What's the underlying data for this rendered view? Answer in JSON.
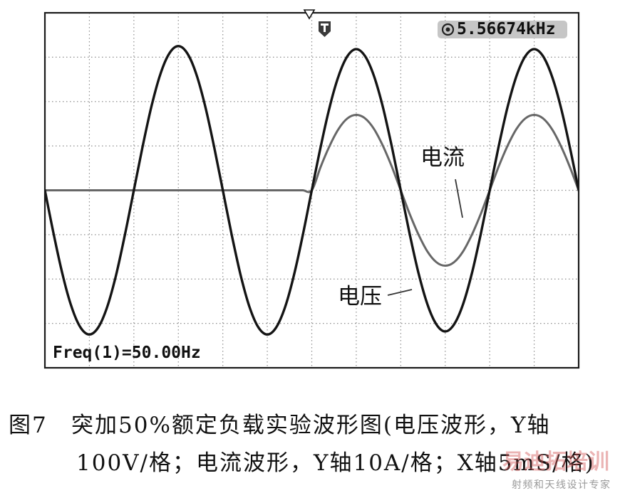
{
  "chart_data": {
    "type": "line",
    "title": "",
    "xlabel": "",
    "ylabel": "",
    "grid": true,
    "xlim_ms": [
      -30,
      30
    ],
    "ylim_voltage_V": [
      -400,
      400
    ],
    "ylim_current_A": [
      -40,
      40
    ],
    "scale": {
      "x_ms_per_div": 5,
      "voltage_V_per_div": 100,
      "current_A_per_div": 10
    },
    "x_ms": [
      -30,
      -29,
      -28,
      -27,
      -26,
      -25,
      -24,
      -23,
      -22,
      -21,
      -20,
      -19,
      -18,
      -17,
      -16,
      -15,
      -14,
      -13,
      -12,
      -11,
      -10,
      -9,
      -8,
      -7,
      -6,
      -5,
      -4,
      -3,
      -2,
      -1,
      0,
      1,
      2,
      3,
      4,
      5,
      6,
      7,
      8,
      9,
      10,
      11,
      12,
      13,
      14,
      15,
      16,
      17,
      18,
      19,
      20,
      21,
      22,
      23,
      24,
      25,
      26,
      27,
      28,
      29,
      30
    ],
    "series": [
      {
        "name": "电压",
        "values_V": [
          0,
          -100,
          -191,
          -263,
          -309,
          -325,
          -309,
          -263,
          -191,
          -100,
          0,
          100,
          191,
          263,
          309,
          325,
          309,
          263,
          191,
          100,
          0,
          -100,
          -191,
          -263,
          -309,
          -325,
          -309,
          -263,
          -191,
          -100,
          0,
          98,
          187,
          257,
          302,
          318,
          302,
          257,
          187,
          98,
          0,
          -98,
          -187,
          -257,
          -302,
          -318,
          -302,
          -257,
          -187,
          -98,
          0,
          98,
          187,
          257,
          302,
          318,
          302,
          257,
          187,
          98,
          0
        ]
      },
      {
        "name": "电流",
        "values_A": [
          0,
          0,
          0,
          0,
          0,
          0,
          0,
          0,
          0,
          0,
          0,
          0,
          0,
          0,
          0,
          0,
          0,
          0,
          0,
          0,
          0,
          0,
          0,
          0,
          0,
          0,
          0,
          0,
          0,
          0,
          0,
          5.3,
          10,
          13.8,
          16.2,
          17,
          16.2,
          13.8,
          10,
          5.3,
          0,
          -5.3,
          -10,
          -13.8,
          -16.2,
          -17,
          -16.2,
          -13.8,
          -10,
          -5.3,
          0,
          5.3,
          10,
          13.8,
          16.2,
          17,
          16.2,
          13.8,
          10,
          5.3,
          0
        ]
      }
    ],
    "readouts": {
      "top_right": "5.56674kHz",
      "bottom_left": "Freq(1)=50.00Hz"
    }
  },
  "caption": {
    "figure_number": "图7",
    "line1": "突加50%额定负载实验波形图(电压波形，Y轴",
    "line2": "100V/格；电流波形，Y轴10A/格；X轴5mS/格)"
  },
  "watermark": {
    "logo": "易迪拓培训",
    "slogan": "射频和天线设计专家"
  },
  "icons": {
    "trigger_position": "trigger-position-icon",
    "trigger_marker": "trigger-marker-icon",
    "channel": "channel-1-icon"
  },
  "colors": {
    "voltage": "#141414",
    "current": "#676767",
    "grid": "#8e8e8e",
    "frame": "#1a1a1a",
    "readout_bg": "#c6c6c6",
    "watermark": "#d55a5a",
    "leader": "#333333"
  }
}
